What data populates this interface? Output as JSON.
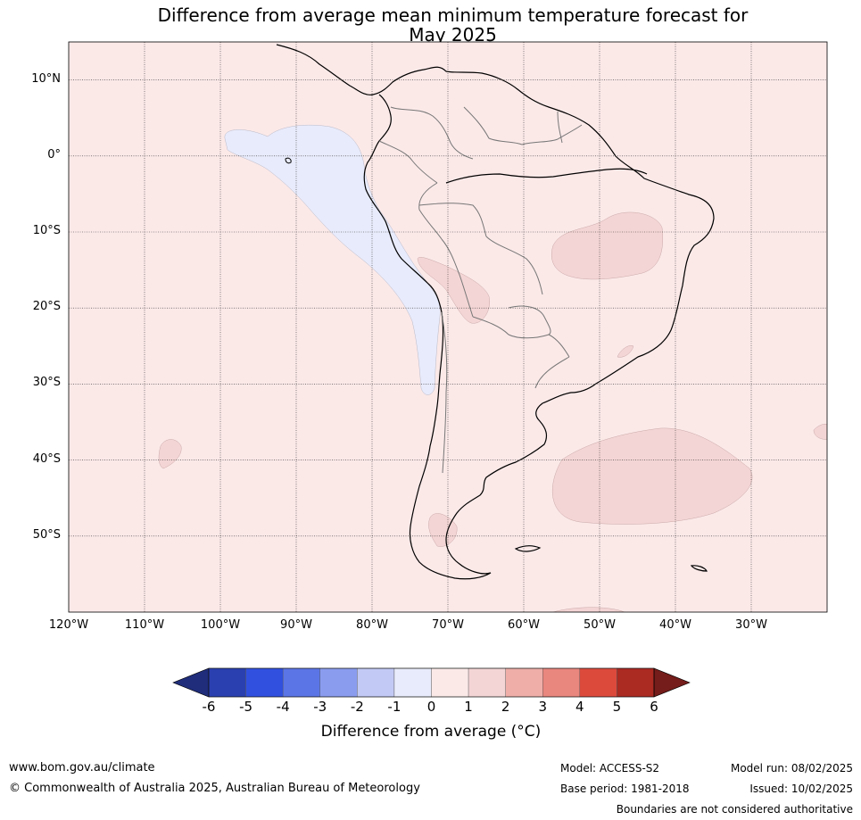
{
  "title_line1": "Difference from average mean minimum temperature forecast for",
  "title_line2": "May 2025",
  "lat_labels": [
    "10°N",
    "0°",
    "10°S",
    "20°S",
    "30°S",
    "40°S",
    "50°S"
  ],
  "lat_values": [
    10,
    0,
    -10,
    -20,
    -30,
    -40,
    -50
  ],
  "lon_labels": [
    "120°W",
    "110°W",
    "100°W",
    "90°W",
    "80°W",
    "70°W",
    "60°W",
    "50°W",
    "40°W",
    "30°W"
  ],
  "lon_values": [
    -120,
    -110,
    -100,
    -90,
    -80,
    -70,
    -60,
    -50,
    -40,
    -30
  ],
  "map_extent": {
    "lon_min": -120,
    "lon_max": -20,
    "lat_min": -60,
    "lat_max": 15
  },
  "colorbar": {
    "label": "Difference from average (°C)",
    "ticks": [
      "-6",
      "-5",
      "-4",
      "-3",
      "-2",
      "-1",
      "0",
      "1",
      "2",
      "3",
      "4",
      "5",
      "6"
    ],
    "colors": [
      "#1f2d7a",
      "#2a40b0",
      "#3150e0",
      "#5b75e6",
      "#8a9cee",
      "#c2c9f4",
      "#e8ebfb",
      "#fbe9e8",
      "#f4d5d5",
      "#efaea8",
      "#e9867e",
      "#dc4a3c",
      "#ab2a22",
      "#741d1a"
    ]
  },
  "footer": {
    "website": "www.bom.gov.au/climate",
    "copyright": "© Commonwealth of Australia 2025, Australian Bureau of Meteorology",
    "model": "Model: ACCESS-S2",
    "base_period": "Base period: 1981-2018",
    "model_run": "Model run: 08/02/2025",
    "issued": "Issued: 10/02/2025",
    "disclaimer": "Boundaries are not considered authoritative"
  }
}
